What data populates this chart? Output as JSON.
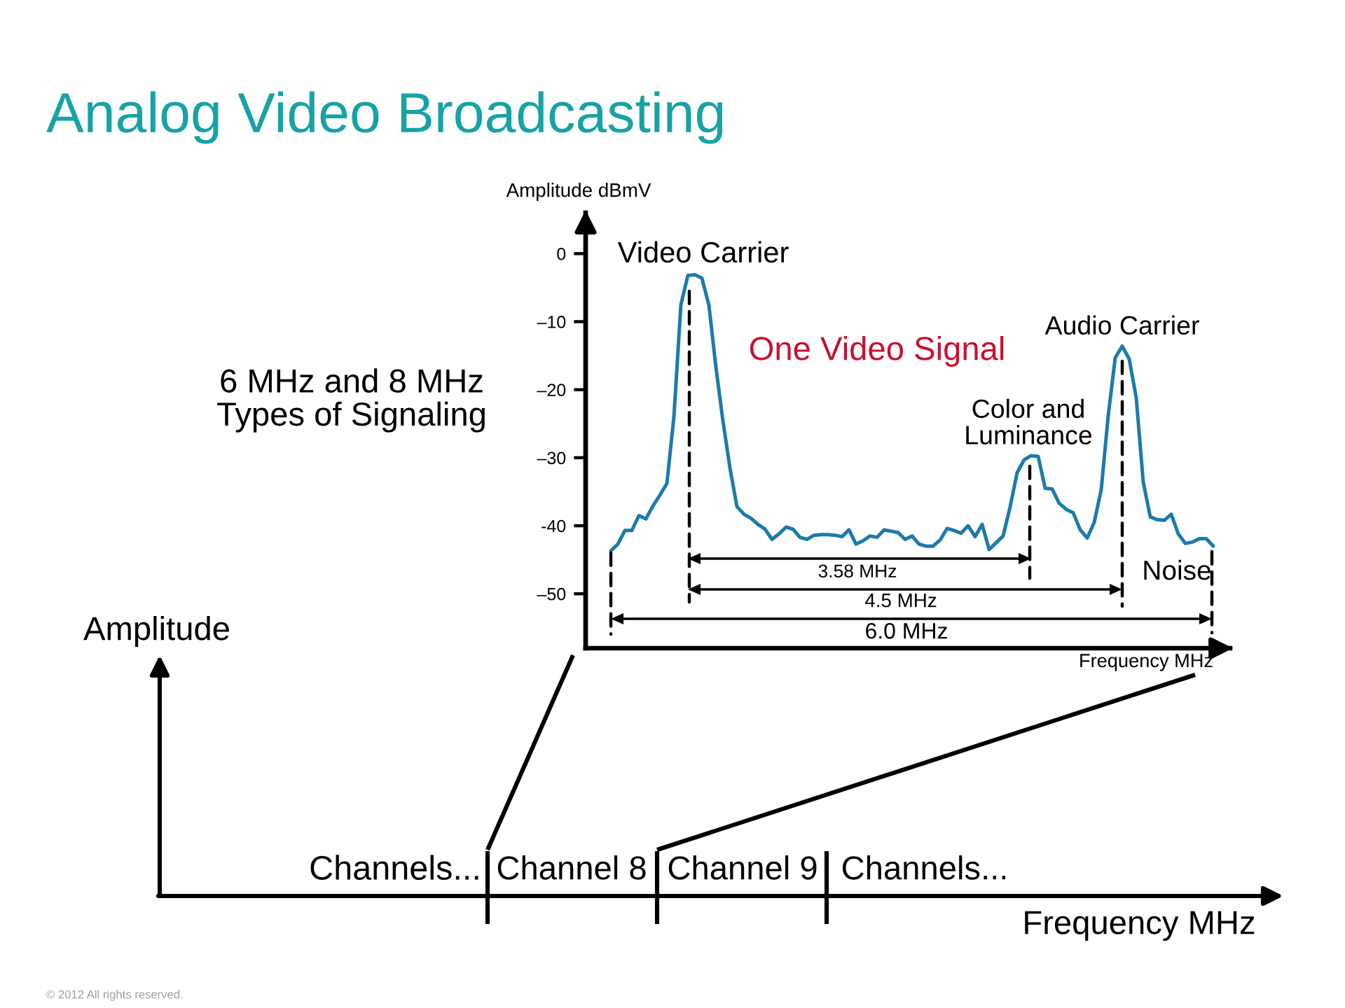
{
  "chart_data": {
    "type": "line",
    "title": "Analog Video Broadcasting",
    "xlabel": "Frequency MHz",
    "ylabel": "Amplitude dBmV",
    "categories": [
      null,
      null,
      null,
      null,
      null,
      null,
      null,
      null,
      null,
      null,
      null,
      null,
      null,
      null,
      null,
      null,
      null,
      null,
      null,
      null,
      null,
      null,
      null,
      null,
      null,
      null,
      null,
      null,
      null,
      null,
      null,
      null,
      null,
      null,
      null,
      null,
      null,
      null,
      null,
      null,
      null,
      null,
      null,
      null,
      null,
      null,
      null,
      null,
      null,
      null,
      null,
      null,
      null,
      null,
      null,
      null,
      null,
      null,
      null,
      null,
      null,
      null,
      null,
      null,
      null,
      null,
      null,
      null,
      null,
      null,
      null,
      null,
      null,
      null,
      null,
      null,
      null,
      null,
      null,
      null,
      null,
      null,
      null,
      null,
      null,
      null,
      null
    ],
    "values": [
      -43.7,
      -42.7,
      -40.7,
      -40.7,
      -38.5,
      -39.0,
      -37.1,
      -35.5,
      -33.8,
      -24.0,
      -7.5,
      -3.2,
      -3.1,
      -3.6,
      -7.6,
      -16.7,
      -24.6,
      -31.5,
      -37.2,
      -38.3,
      -38.9,
      -39.8,
      -40.5,
      -42.0,
      -41.2,
      -40.2,
      -40.5,
      -41.7,
      -42.0,
      -41.4,
      -41.3,
      -41.3,
      -41.4,
      -41.6,
      -40.6,
      -42.7,
      -42.2,
      -41.5,
      -41.7,
      -40.6,
      -40.8,
      -41.0,
      -42.0,
      -41.5,
      -42.7,
      -43.0,
      -43.0,
      -42.1,
      -40.4,
      -40.7,
      -41.1,
      -40.0,
      -41.6,
      -39.8,
      -43.5,
      -42.5,
      -41.5,
      -37.2,
      -32.2,
      -30.3,
      -29.7,
      -29.8,
      -34.5,
      -34.6,
      -36.7,
      -37.6,
      -38.1,
      -40.6,
      -41.8,
      -39.5,
      -34.7,
      -23.8,
      -15.3,
      -13.6,
      -15.5,
      -21.2,
      -33.6,
      -38.7,
      -39.1,
      -39.2,
      -38.3,
      -41.2,
      -42.6,
      -42.4,
      -41.9,
      -41.9,
      -43.0
    ],
    "color": "#1b7bab",
    "ylim": [
      -58,
      6
    ],
    "yticks": [
      0,
      {
        "value": -10,
        "label": "–10"
      },
      {
        "value": -20,
        "label": "–20"
      },
      {
        "value": -30,
        "label": "–30"
      },
      -40,
      {
        "value": -50,
        "label": "–50"
      }
    ],
    "tick_labels": "y",
    "annotations": [
      "Video Carrier",
      "One Video Signal",
      "Color and\nLuminance",
      "Audio Carrier",
      "Noise",
      "3.58 MHz",
      "4.5 MHz",
      "6.0 MHz",
      "6 MHz and 8 MHz\nTypes of Signaling",
      "Amplitude",
      "Frequency MHz",
      "Channels...",
      "Channel 8",
      "Channel 9",
      "Channels...",
      "© 2012 All rights reserved."
    ]
  }
}
